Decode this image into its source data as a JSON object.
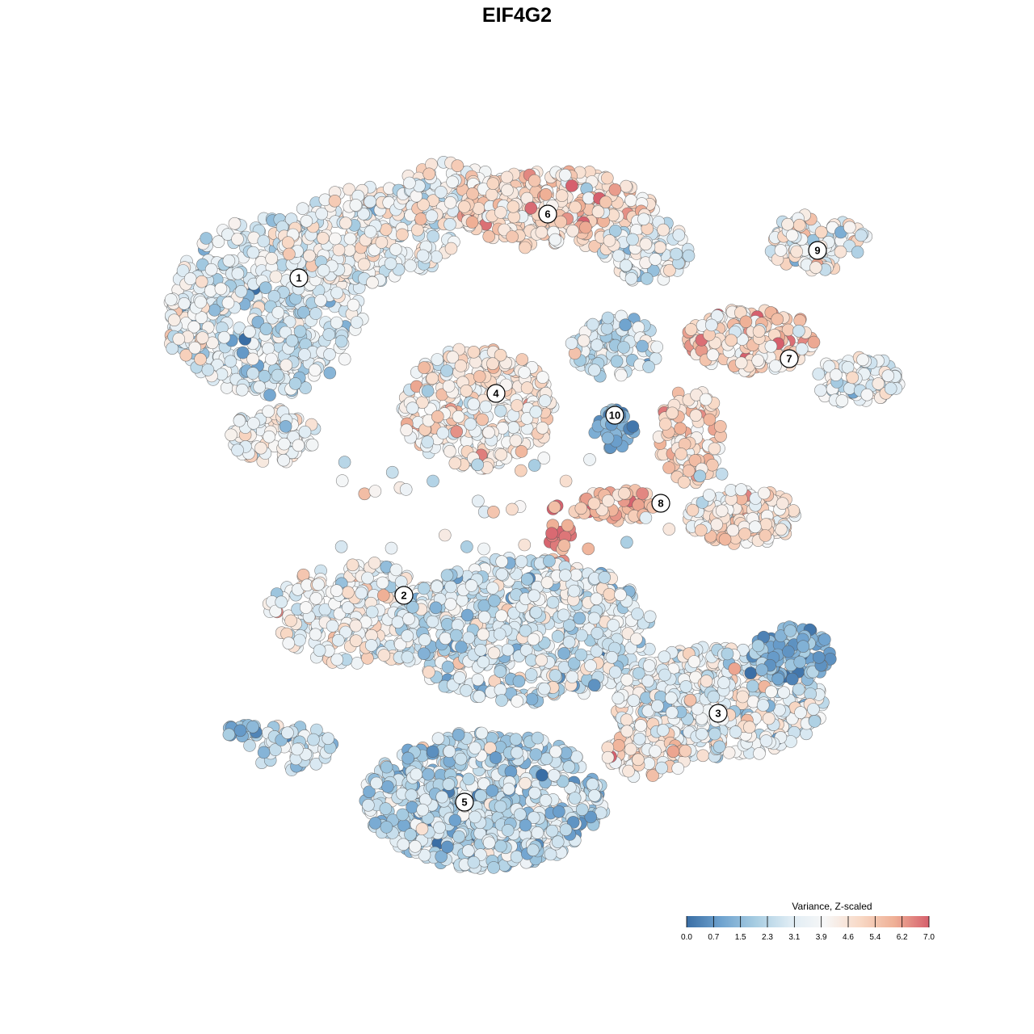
{
  "title": "EIF4G2",
  "chart_data": {
    "type": "scatter",
    "title": "EIF4G2",
    "color_scale": {
      "title": "Variance, Z-scaled",
      "min": 0.0,
      "max": 7.0,
      "ticks": [
        "0.0",
        "0.7",
        "1.5",
        "2.3",
        "3.1",
        "3.9",
        "4.6",
        "5.4",
        "6.2",
        "7.0"
      ],
      "colors": [
        "#3a6ea5",
        "#6fa3cf",
        "#a8cde2",
        "#dfecf4",
        "#f7f7f7",
        "#f8d9c6",
        "#efb096",
        "#d6606d"
      ]
    },
    "grid": false,
    "axes_visible": false,
    "cluster_labels": [
      "1",
      "2",
      "3",
      "4",
      "5",
      "6",
      "7",
      "8",
      "9",
      "10"
    ],
    "clusters": [
      {
        "label": "1",
        "center": [
          370,
          344
        ],
        "mean": 3.0
      },
      {
        "label": "2",
        "center": [
          500,
          737
        ],
        "mean": 3.9
      },
      {
        "label": "3",
        "center": [
          889,
          883
        ],
        "mean": 3.3
      },
      {
        "label": "4",
        "center": [
          614,
          487
        ],
        "mean": 4.3
      },
      {
        "label": "5",
        "center": [
          575,
          993
        ],
        "mean": 2.4
      },
      {
        "label": "6",
        "center": [
          678,
          265
        ],
        "mean": 4.9
      },
      {
        "label": "7",
        "center": [
          977,
          444
        ],
        "mean": 4.7
      },
      {
        "label": "8",
        "center": [
          818,
          623
        ],
        "mean": 5.2
      },
      {
        "label": "9",
        "center": [
          1012,
          310
        ],
        "mean": 3.6
      },
      {
        "label": "10",
        "center": [
          761,
          514
        ],
        "mean": 1.6
      }
    ]
  }
}
